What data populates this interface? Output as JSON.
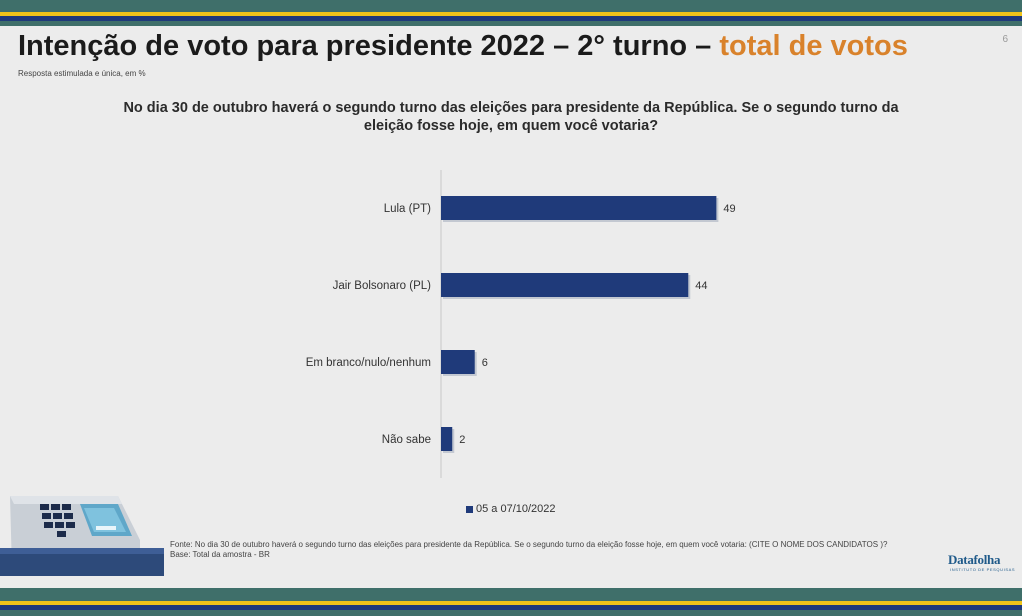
{
  "header": {
    "title_main": "Intenção de voto para presidente 2022 – 2° turno – ",
    "title_accent": "total de votos",
    "subtitle": "Resposta estimulada e única, em %",
    "page_number": "6"
  },
  "question": "No dia 30 de outubro haverá o segundo turno das eleições para presidente da República. Se o segundo turno da eleição fosse hoje, em quem você votaria?",
  "chart_data": {
    "type": "bar",
    "orientation": "horizontal",
    "categories": [
      "Lula (PT)",
      "Jair Bolsonaro (PL)",
      "Em branco/nulo/nenhum",
      "Não sabe"
    ],
    "series": [
      {
        "name": "05 a 07/10/2022",
        "values": [
          49,
          44,
          6,
          2
        ],
        "color": "#1f3a7a"
      }
    ],
    "xlim": [
      0,
      100
    ],
    "grid": false,
    "legend": "bottom"
  },
  "legend_label": "05 a 07/10/2022",
  "footer": {
    "source": "Fonte: No dia 30 de outubro haverá o segundo turno das eleições para presidente da República. Se o segundo turno da eleição fosse hoje, em quem você votaria: (CITE O NOME DOS CANDIDATOS )?",
    "base": "Base: Total da amostra - BR",
    "logo": "Datafolha",
    "logo_sub": "INSTITUTO DE PESQUISAS"
  },
  "colors": {
    "accent": "#d9822b",
    "bar": "#1f3a7a",
    "band": "#3f6f6a",
    "gold": "#f0c419"
  }
}
